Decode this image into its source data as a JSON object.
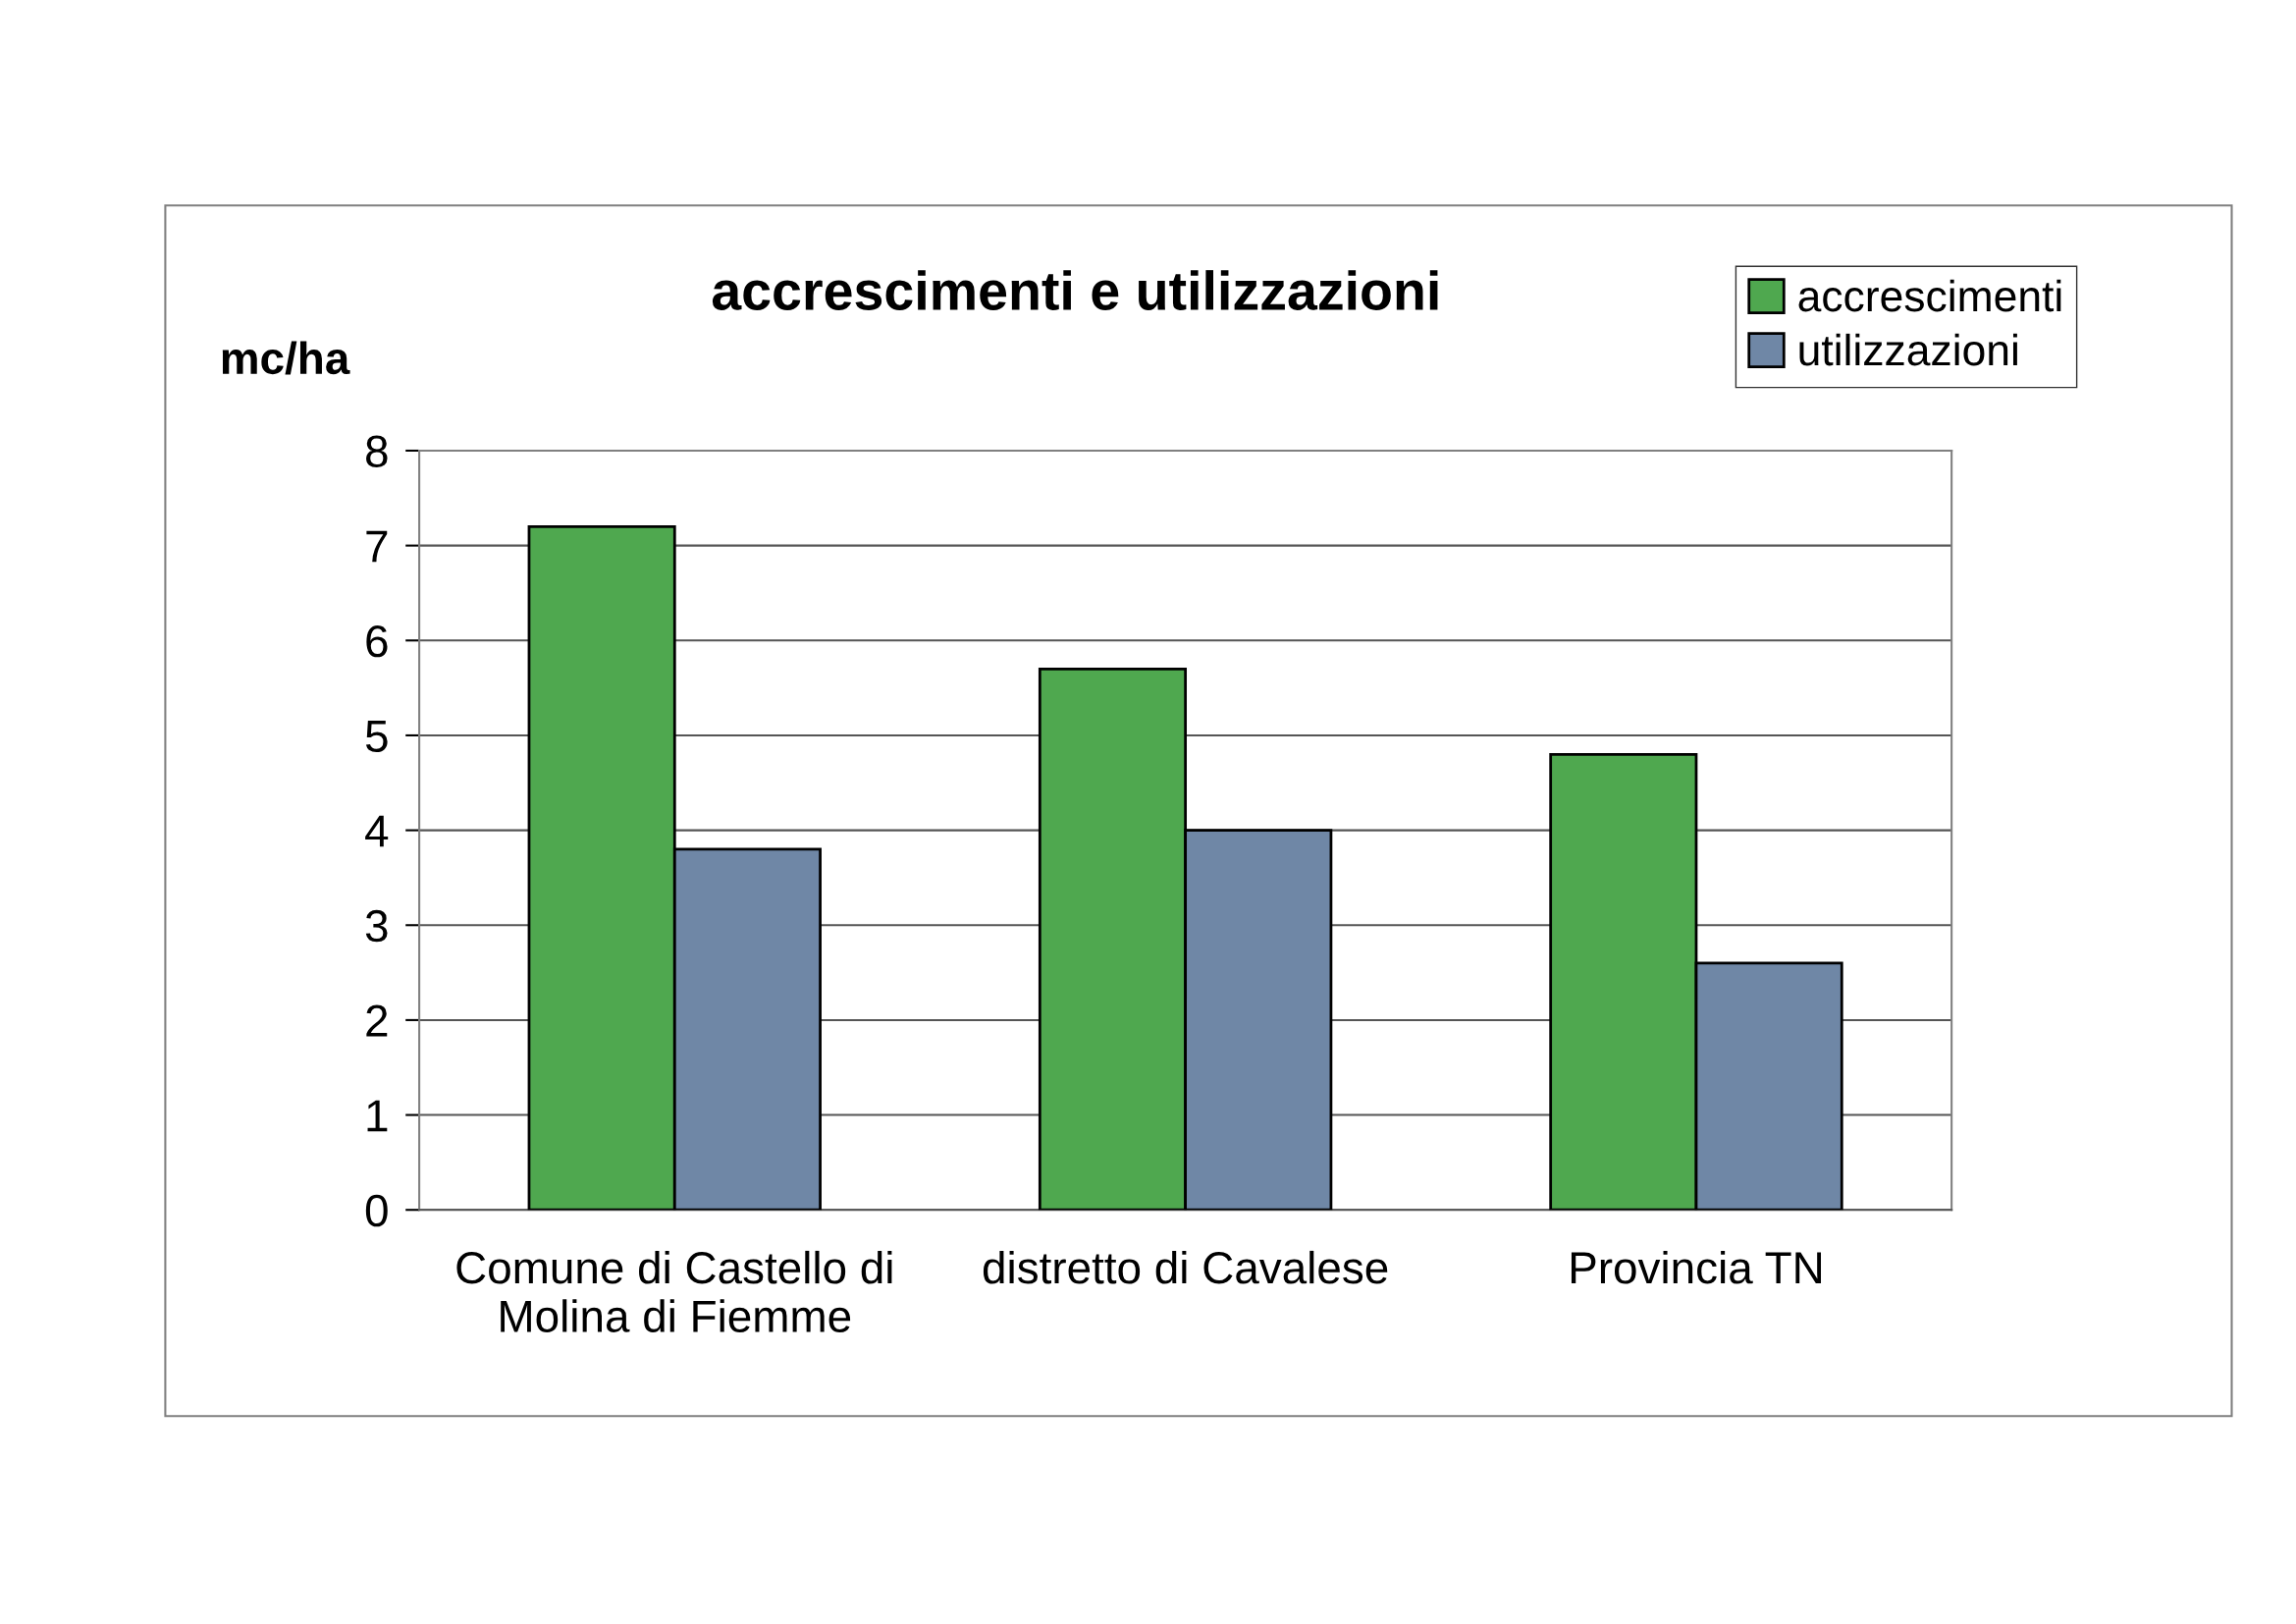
{
  "chart_data": {
    "type": "bar",
    "title": "accrescimenti e utilizzazioni",
    "ylabel": "mc/ha",
    "categories": [
      "Comune di Castello di\nMolina di Fiemme",
      "distretto di Cavalese",
      "Provincia TN"
    ],
    "series": [
      {
        "name": "accrescimenti",
        "color": "#4fa84f",
        "values": [
          7.2,
          5.7,
          4.8
        ]
      },
      {
        "name": "utilizzazioni",
        "color": "#6f87a6",
        "values": [
          3.8,
          4.0,
          2.6
        ]
      }
    ],
    "ylim": [
      0,
      8
    ],
    "yticks": [
      0,
      1,
      2,
      3,
      4,
      5,
      6,
      7,
      8
    ],
    "grid": "y",
    "legend": "top right"
  }
}
